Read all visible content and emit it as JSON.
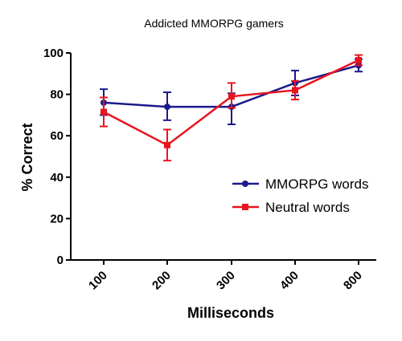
{
  "chart_data": {
    "type": "line",
    "title": "Addicted MMORPG gamers",
    "xlabel": "Milliseconds",
    "ylabel": "% Correct",
    "categories": [
      "100",
      "200",
      "300",
      "400",
      "800"
    ],
    "ylim": [
      0,
      100
    ],
    "yticks": [
      "0",
      "20",
      "40",
      "60",
      "80",
      "100"
    ],
    "grid": false,
    "legend_position": "right",
    "series": [
      {
        "name": "MMORPG words",
        "color": "#1a1a8c",
        "marker": "circle",
        "values": [
          76,
          74,
          74,
          85.5,
          94
        ],
        "err_low": [
          70,
          67.5,
          65.5,
          79.5,
          91
        ],
        "err_high": [
          82.5,
          81,
          80.5,
          91.5,
          97
        ]
      },
      {
        "name": "Neutral words",
        "color": "#e8141e",
        "marker": "square",
        "values": [
          71.5,
          55.5,
          79,
          82,
          96.5
        ],
        "err_low": [
          64.5,
          48,
          73.5,
          77.5,
          94
        ],
        "err_high": [
          78.5,
          63,
          85.5,
          86.5,
          99
        ]
      }
    ]
  }
}
